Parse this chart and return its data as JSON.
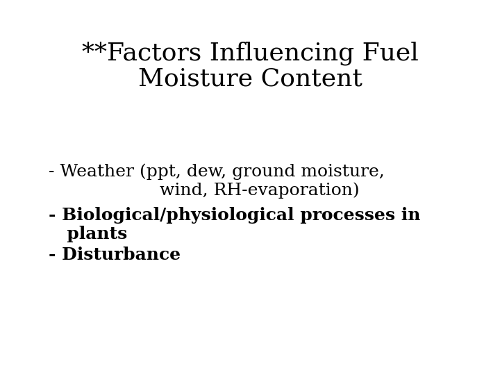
{
  "background_color": "#ffffff",
  "title_line1": "**Factors Influencing Fuel",
  "title_line2": "Moisture Content",
  "title_fontsize": 26,
  "title_fontfamily": "DejaVu Serif",
  "bullet1_line1": "- Weather (ppt, dew, ground moisture,",
  "bullet1_line2": "                    wind, RH-evaporation)",
  "bullet1_fontsize": 18,
  "bullet2_line1": "- Biological/physiological processes in",
  "bullet2_line2": "   plants",
  "bullet2_fontsize": 18,
  "bullet3": "- Disturbance",
  "bullet3_fontsize": 18,
  "text_color": "#000000",
  "figwidth": 7.2,
  "figheight": 5.4,
  "dpi": 100
}
